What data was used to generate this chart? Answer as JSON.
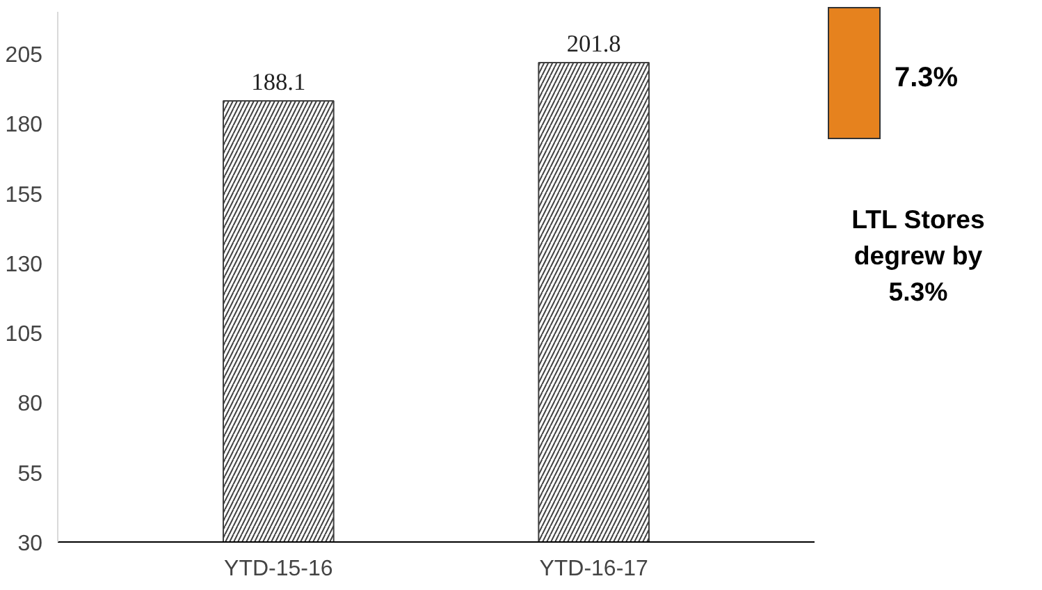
{
  "chart_data": {
    "type": "bar",
    "categories": [
      "YTD-15-16",
      "YTD-16-17"
    ],
    "values": [
      188.1,
      201.8
    ],
    "color": "#404040",
    "ylim": [
      30,
      220
    ],
    "yticks": [
      30,
      55,
      80,
      105,
      130,
      155,
      180,
      205
    ],
    "grid": false,
    "data_labels": true,
    "annotations": [
      "7.3%",
      "LTL Stores degrew by 5.3%"
    ]
  }
}
